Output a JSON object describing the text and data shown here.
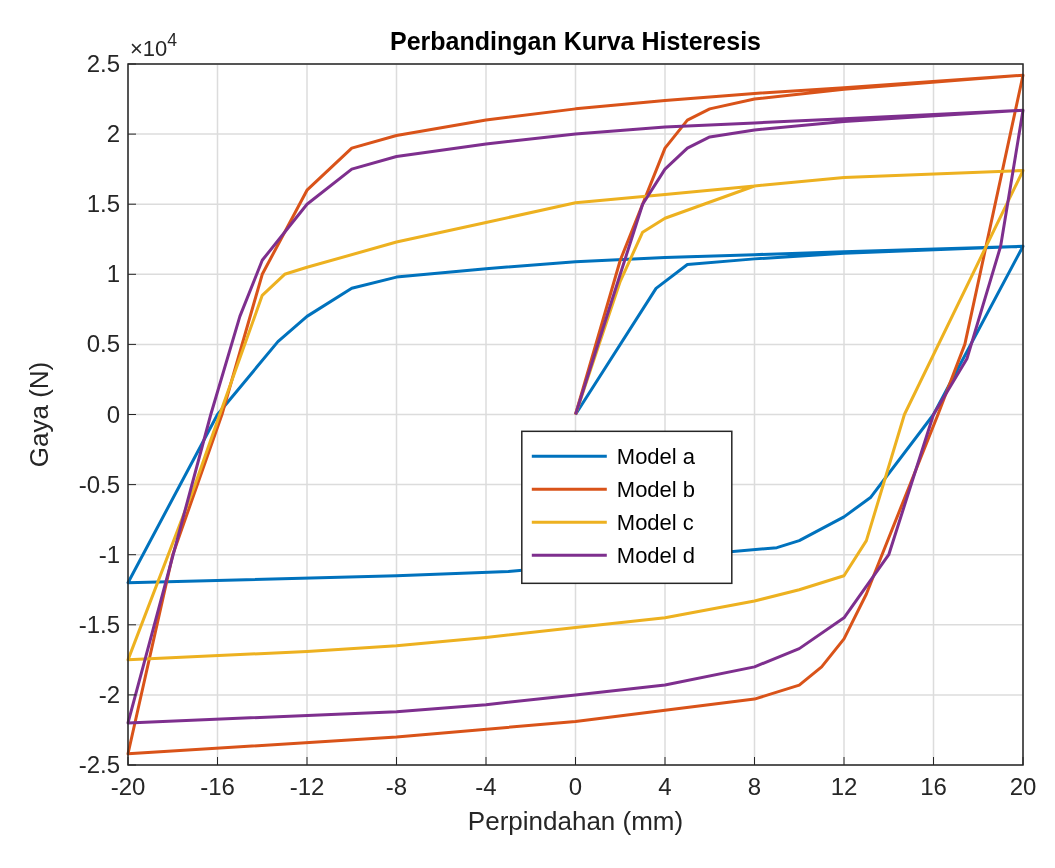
{
  "chart_data": {
    "type": "line",
    "title": "Perbandingan Kurva Histeresis",
    "xlabel": "Perpindahan (mm)",
    "ylabel": "Gaya (N)",
    "annotations": [
      "×10$^{4}$"
    ],
    "xlim": [
      -20,
      20
    ],
    "xticks": [
      -20,
      -16,
      -12,
      -8,
      -4,
      0,
      4,
      8,
      12,
      16,
      20
    ],
    "ylim": [
      -2.5,
      2.5
    ],
    "yticks": [
      -2.5,
      -2,
      -1.5,
      -1,
      -0.5,
      0,
      0.5,
      1,
      1.5,
      2,
      2.5
    ],
    "grid": true,
    "legend": "center",
    "line_style": "solid",
    "marker": "none",
    "series": [
      {
        "name": "Model a",
        "color": "#0072bd",
        "x": [
          0,
          3.6,
          5,
          8,
          12,
          20,
          16,
          13.2,
          12,
          10,
          9,
          -3,
          -8,
          -20,
          -16,
          -13.3,
          -12,
          -10,
          -8,
          -4,
          0,
          4,
          8,
          12,
          20
        ],
        "values": [
          0,
          0.9,
          1.07,
          1.11,
          1.15,
          1.2,
          0,
          -0.59,
          -0.73,
          -0.9,
          -0.95,
          -1.12,
          -1.15,
          -1.2,
          0,
          0.52,
          0.7,
          0.9,
          0.98,
          1.04,
          1.09,
          1.12,
          1.14,
          1.16,
          1.2
        ]
      },
      {
        "name": "Model b",
        "color": "#d95319",
        "x": [
          0,
          2,
          4,
          5,
          6,
          8,
          12,
          20,
          17.4,
          16.2,
          13,
          12,
          11,
          10,
          8,
          4,
          0,
          -8,
          -20,
          -18,
          -15.8,
          -14,
          -12,
          -10,
          -8,
          -4,
          0,
          4,
          8,
          12,
          20
        ],
        "values": [
          0,
          1.1,
          1.9,
          2.1,
          2.18,
          2.25,
          2.32,
          2.42,
          0.5,
          0,
          -1.28,
          -1.6,
          -1.8,
          -1.93,
          -2.03,
          -2.11,
          -2.19,
          -2.3,
          -2.42,
          -1,
          0,
          1,
          1.6,
          1.9,
          1.99,
          2.1,
          2.18,
          2.24,
          2.29,
          2.33,
          2.42
        ]
      },
      {
        "name": "Model c",
        "color": "#edb120",
        "x": [
          0,
          2,
          3,
          4,
          8,
          12,
          20,
          14.7,
          13,
          12,
          10,
          8,
          4,
          0,
          -4,
          -8,
          -12,
          -20,
          -17,
          -15.9,
          -14,
          -13,
          -12,
          -8,
          -4,
          0,
          4,
          8,
          12,
          20
        ],
        "values": [
          0,
          0.95,
          1.3,
          1.4,
          1.63,
          1.69,
          1.74,
          0,
          -0.9,
          -1.15,
          -1.25,
          -1.33,
          -1.45,
          -1.52,
          -1.59,
          -1.65,
          -1.69,
          -1.75,
          -0.5,
          0,
          0.85,
          1,
          1.05,
          1.23,
          1.37,
          1.51,
          1.57,
          1.63,
          1.69,
          1.74
        ]
      },
      {
        "name": "Model d",
        "color": "#7e2f8e",
        "x": [
          0,
          2,
          3,
          4,
          5,
          6,
          8,
          12,
          20,
          19,
          17.5,
          16,
          14,
          12,
          10,
          8,
          4,
          0,
          -4,
          -8,
          -20,
          -16.3,
          -15,
          -14,
          -12,
          -10,
          -8,
          -4,
          0,
          4,
          8,
          12,
          20
        ],
        "values": [
          0,
          1,
          1.5,
          1.75,
          1.9,
          1.98,
          2.03,
          2.09,
          2.17,
          1.2,
          0.4,
          0,
          -1,
          -1.45,
          -1.67,
          -1.8,
          -1.93,
          -2,
          -2.07,
          -2.12,
          -2.2,
          0,
          0.7,
          1.1,
          1.5,
          1.75,
          1.84,
          1.93,
          2,
          2.05,
          2.08,
          2.11,
          2.17
        ]
      }
    ]
  }
}
